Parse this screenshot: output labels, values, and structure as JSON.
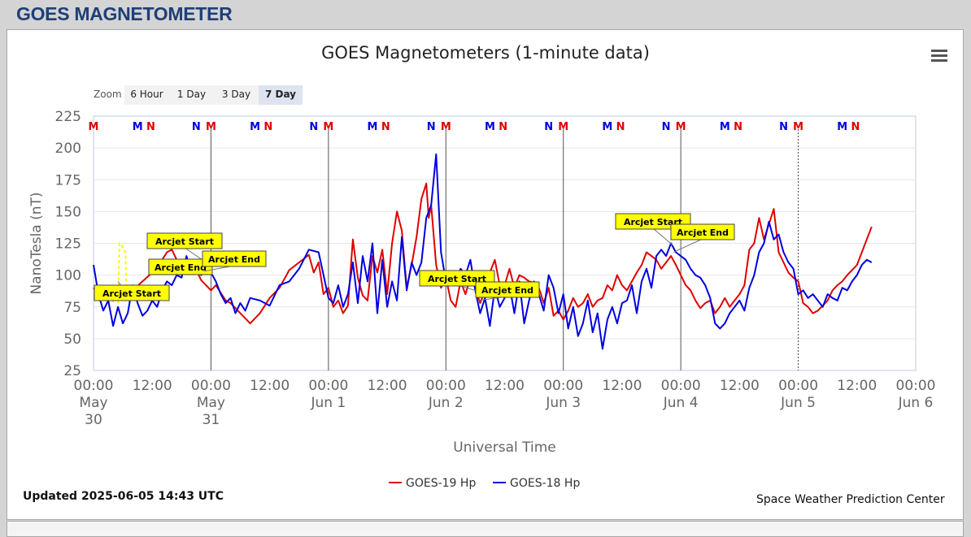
{
  "page": {
    "header_title": "GOES MAGNETOMETER"
  },
  "menu_icon": "hamburger-menu-icon",
  "zoom": {
    "label": "Zoom",
    "buttons": [
      "6 Hour",
      "1 Day",
      "3 Day",
      "7 Day"
    ],
    "active": "7 Day"
  },
  "footer": {
    "updated": "Updated 2025-06-05 14:43 UTC",
    "credit": "Space Weather Prediction Center"
  },
  "colors": {
    "goes19": "#e00000",
    "goes18": "#0000e0",
    "arcjet_box": "#ffff00",
    "grid": "#e6e6e6",
    "axis_text": "#666666"
  },
  "chart_data": {
    "type": "line",
    "title": "GOES Magnetometers (1-minute data)",
    "xlabel": "Universal Time",
    "ylabel": "NanoTesla (nT)",
    "ylim": [
      25,
      225
    ],
    "yticks": [
      25,
      50,
      75,
      100,
      125,
      150,
      175,
      200,
      225
    ],
    "xlim": [
      "2025-05-30 00:00",
      "2025-06-06 00:00"
    ],
    "x_unit": "hours since 2025-05-30 00:00 UTC",
    "xticks": [
      {
        "x": 0,
        "label": [
          "00:00",
          "May",
          "30"
        ]
      },
      {
        "x": 12,
        "label": [
          "12:00"
        ]
      },
      {
        "x": 24,
        "label": [
          "00:00",
          "May",
          "31"
        ]
      },
      {
        "x": 36,
        "label": [
          "12:00"
        ]
      },
      {
        "x": 48,
        "label": [
          "00:00",
          "Jun 1"
        ]
      },
      {
        "x": 60,
        "label": [
          "12:00"
        ]
      },
      {
        "x": 72,
        "label": [
          "00:00",
          "Jun 2"
        ]
      },
      {
        "x": 84,
        "label": [
          "12:00"
        ]
      },
      {
        "x": 96,
        "label": [
          "00:00",
          "Jun 3"
        ]
      },
      {
        "x": 108,
        "label": [
          "12:00"
        ]
      },
      {
        "x": 120,
        "label": [
          "00:00",
          "Jun 4"
        ]
      },
      {
        "x": 132,
        "label": [
          "12:00"
        ]
      },
      {
        "x": 144,
        "label": [
          "00:00",
          "Jun 5"
        ]
      },
      {
        "x": 156,
        "label": [
          "12:00"
        ]
      },
      {
        "x": 168,
        "label": [
          "00:00",
          "Jun 6"
        ]
      }
    ],
    "grid": true,
    "legend_position": "bottom-center",
    "day_lines": [
      24,
      48,
      72,
      96,
      120
    ],
    "now_line": 144,
    "noon_midnight_markers": [
      {
        "x": 0,
        "text": "M",
        "sat": "GOES-19"
      },
      {
        "x": 9,
        "text": "M",
        "sat": "GOES-18"
      },
      {
        "x": 11.7,
        "text": "N",
        "sat": "GOES-19"
      },
      {
        "x": 21,
        "text": "N",
        "sat": "GOES-18"
      },
      {
        "x": 24,
        "text": "M",
        "sat": "GOES-19"
      },
      {
        "x": 33,
        "text": "M",
        "sat": "GOES-18"
      },
      {
        "x": 35.7,
        "text": "N",
        "sat": "GOES-19"
      },
      {
        "x": 45,
        "text": "N",
        "sat": "GOES-18"
      },
      {
        "x": 48,
        "text": "M",
        "sat": "GOES-19"
      },
      {
        "x": 57,
        "text": "M",
        "sat": "GOES-18"
      },
      {
        "x": 59.7,
        "text": "N",
        "sat": "GOES-19"
      },
      {
        "x": 69,
        "text": "N",
        "sat": "GOES-18"
      },
      {
        "x": 72,
        "text": "M",
        "sat": "GOES-19"
      },
      {
        "x": 81,
        "text": "M",
        "sat": "GOES-18"
      },
      {
        "x": 83.7,
        "text": "N",
        "sat": "GOES-19"
      },
      {
        "x": 93,
        "text": "N",
        "sat": "GOES-18"
      },
      {
        "x": 96,
        "text": "M",
        "sat": "GOES-19"
      },
      {
        "x": 105,
        "text": "M",
        "sat": "GOES-18"
      },
      {
        "x": 107.7,
        "text": "N",
        "sat": "GOES-19"
      },
      {
        "x": 117,
        "text": "N",
        "sat": "GOES-18"
      },
      {
        "x": 120,
        "text": "M",
        "sat": "GOES-19"
      },
      {
        "x": 129,
        "text": "M",
        "sat": "GOES-18"
      },
      {
        "x": 131.7,
        "text": "N",
        "sat": "GOES-19"
      },
      {
        "x": 141,
        "text": "N",
        "sat": "GOES-18"
      },
      {
        "x": 144,
        "text": "M",
        "sat": "GOES-19"
      },
      {
        "x": 153,
        "text": "M",
        "sat": "GOES-18"
      },
      {
        "x": 155.7,
        "text": "N",
        "sat": "GOES-19"
      }
    ],
    "arcjet_events": [
      {
        "label": "Arcjet Start",
        "x": 5
      },
      {
        "label": "Arcjet Start",
        "x": 21
      },
      {
        "label": "Arcjet End",
        "x": 21.5
      },
      {
        "label": "Arcjet End",
        "x": 22.5
      },
      {
        "label": "Arcjet Start",
        "x": 77
      },
      {
        "label": "Arcjet End",
        "x": 78
      },
      {
        "label": "Arcjet Start",
        "x": 117.5
      },
      {
        "label": "Arcjet End",
        "x": 118.5
      }
    ],
    "series": [
      {
        "name": "GOES-19 Hp",
        "x": [
          0,
          2,
          4,
          6,
          8,
          10,
          12,
          13,
          14,
          15,
          16,
          17,
          18,
          19,
          20,
          21,
          22,
          23,
          24,
          25,
          26,
          27,
          28,
          29,
          30,
          32,
          34,
          36,
          38,
          40,
          42,
          44,
          45,
          46,
          47,
          48,
          49,
          50,
          51,
          52,
          53,
          54,
          55,
          56,
          57,
          58,
          59,
          60,
          61,
          62,
          63,
          64,
          65,
          66,
          67,
          68,
          68.5,
          69,
          70,
          71,
          72,
          73,
          74,
          75,
          76,
          77,
          78,
          79,
          80,
          81,
          82,
          83,
          84,
          85,
          86,
          87,
          88,
          89,
          90,
          91,
          92,
          93,
          94,
          95,
          96,
          97,
          98,
          99,
          100,
          101,
          102,
          103,
          104,
          105,
          106,
          107,
          108,
          109,
          110,
          111,
          112,
          113,
          114,
          115,
          116,
          117,
          118,
          119,
          120,
          121,
          122,
          123,
          124,
          125,
          126,
          127,
          128,
          129,
          130,
          131,
          132,
          133,
          134,
          135,
          136,
          137,
          138,
          139,
          140,
          141,
          142,
          143,
          144,
          145,
          146,
          147,
          148,
          149,
          150,
          151,
          152,
          153,
          154,
          155,
          156,
          157,
          158,
          159
        ],
        "values": [
          90,
          82,
          80,
          85,
          88,
          95,
          102,
          105,
          112,
          118,
          120,
          112,
          100,
          110,
          108,
          104,
          96,
          92,
          88,
          92,
          86,
          80,
          78,
          74,
          70,
          62,
          70,
          82,
          90,
          104,
          110,
          116,
          102,
          110,
          85,
          90,
          75,
          80,
          70,
          76,
          128,
          98,
          84,
          80,
          115,
          102,
          120,
          85,
          125,
          150,
          135,
          90,
          108,
          130,
          160,
          172,
          145,
          155,
          108,
          90,
          98,
          80,
          75,
          95,
          85,
          98,
          90,
          78,
          88,
          102,
          112,
          92,
          92,
          105,
          90,
          100,
          98,
          95,
          94,
          90,
          78,
          90,
          68,
          72,
          65,
          72,
          82,
          75,
          78,
          85,
          75,
          80,
          82,
          92,
          88,
          100,
          92,
          88,
          95,
          102,
          108,
          118,
          115,
          112,
          105,
          110,
          115,
          108,
          100,
          92,
          88,
          80,
          74,
          78,
          80,
          70,
          75,
          82,
          75,
          80,
          85,
          92,
          120,
          125,
          145,
          128,
          140,
          152,
          118,
          110,
          102,
          98,
          95,
          78,
          75,
          70,
          72,
          76,
          80,
          88,
          92,
          95,
          100,
          104,
          108,
          118,
          128,
          138
        ]
      },
      {
        "name": "GOES-18 Hp",
        "x": [
          0,
          1,
          2,
          3,
          4,
          5,
          6,
          7,
          8,
          9,
          10,
          11,
          12,
          13,
          14,
          15,
          16,
          17,
          18,
          19,
          20,
          21,
          22,
          23,
          24,
          25,
          26,
          27,
          28,
          29,
          30,
          31,
          32,
          34,
          36,
          38,
          40,
          42,
          44,
          46,
          48,
          49,
          50,
          51,
          52,
          53,
          54,
          55,
          56,
          57,
          58,
          59,
          60,
          61,
          62,
          63,
          64,
          65,
          66,
          67,
          68,
          69,
          70,
          71,
          72,
          73,
          74,
          75,
          76,
          77,
          78,
          79,
          80,
          81,
          82,
          83,
          84,
          85,
          86,
          87,
          88,
          89,
          90,
          91,
          92,
          93,
          94,
          95,
          96,
          97,
          98,
          99,
          100,
          101,
          102,
          103,
          104,
          105,
          106,
          107,
          108,
          109,
          110,
          111,
          112,
          113,
          114,
          115,
          116,
          117,
          118,
          119,
          120,
          121,
          122,
          123,
          124,
          125,
          126,
          127,
          128,
          129,
          130,
          131,
          132,
          133,
          134,
          135,
          136,
          137,
          138,
          139,
          140,
          141,
          142,
          143,
          144,
          145,
          146,
          147,
          148,
          149,
          150,
          151,
          152,
          153,
          154,
          155,
          156,
          157,
          158,
          159
        ],
        "values": [
          108,
          85,
          72,
          80,
          60,
          75,
          62,
          70,
          92,
          78,
          68,
          72,
          80,
          75,
          88,
          95,
          92,
          100,
          98,
          115,
          102,
          105,
          100,
          108,
          102,
          95,
          85,
          78,
          82,
          70,
          78,
          72,
          82,
          80,
          76,
          92,
          95,
          105,
          120,
          118,
          82,
          78,
          92,
          75,
          85,
          110,
          78,
          115,
          95,
          125,
          70,
          112,
          75,
          95,
          80,
          130,
          88,
          110,
          100,
          110,
          145,
          155,
          195,
          118,
          95,
          100,
          95,
          105,
          100,
          112,
          88,
          70,
          82,
          60,
          90,
          75,
          82,
          92,
          70,
          95,
          62,
          80,
          95,
          85,
          72,
          100,
          90,
          70,
          85,
          58,
          75,
          52,
          62,
          80,
          55,
          70,
          42,
          65,
          75,
          62,
          78,
          80,
          92,
          70,
          95,
          105,
          90,
          115,
          120,
          115,
          125,
          118,
          115,
          112,
          105,
          100,
          98,
          92,
          82,
          62,
          58,
          62,
          70,
          75,
          80,
          72,
          90,
          100,
          118,
          125,
          142,
          128,
          132,
          118,
          110,
          105,
          85,
          88,
          82,
          85,
          80,
          75,
          85,
          82,
          80,
          90,
          88,
          95,
          100,
          108,
          112,
          110
        ]
      }
    ]
  }
}
